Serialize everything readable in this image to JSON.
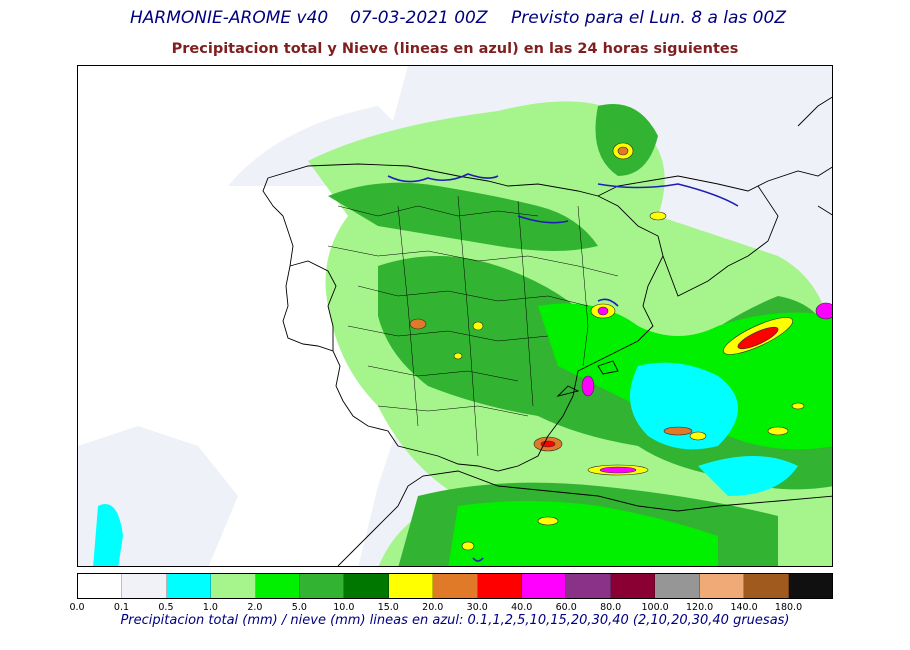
{
  "header": {
    "model": "HARMONIE-AROME v40",
    "run": "07-03-2021 00Z",
    "valid": "Previsto para el Lun. 8 a las 00Z",
    "subtitle": "Precipitacion total y Nieve (lineas en azul) en las 24 horas siguientes"
  },
  "legend": {
    "ticks": [
      "0.0",
      "0.1",
      "0.5",
      "1.0",
      "2.0",
      "5.0",
      "10.0",
      "15.0",
      "20.0",
      "30.0",
      "40.0",
      "60.0",
      "80.0",
      "100.0",
      "120.0",
      "140.0",
      "180.0"
    ],
    "colors": [
      "#ffffff",
      "#f0f2f7",
      "#00ffff",
      "#a6f58c",
      "#00f000",
      "#32b432",
      "#007800",
      "#ffff00",
      "#e07a28",
      "#ff0000",
      "#ff00ff",
      "#8a3288",
      "#8a0032",
      "#969696",
      "#f0aa78",
      "#a05a1e",
      "#101010"
    ],
    "caption": "Precipitacion total (mm) / nieve (mm) lineas en azul: 0.1,1,2,5,10,15,20,30,40  (2,10,20,30,40 gruesas)"
  },
  "map": {
    "snow_color": "#1e1eb4"
  }
}
